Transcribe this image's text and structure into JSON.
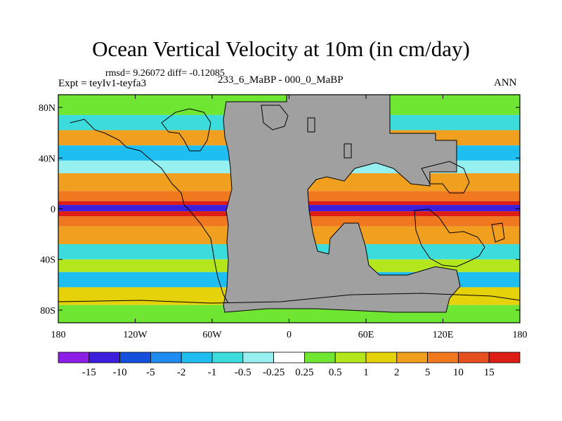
{
  "title": "Ocean Vertical Velocity at 10m (in cm/day)",
  "stats": "rmsd= 9.26072 diff= -0.12085",
  "expt": "Expt = teyIv1-teyfa3",
  "center_label": "233_6_MaBP - 000_0_MaBP",
  "season": "ANN",
  "land_color": "#a0a0a0",
  "chart_data": {
    "type": "heatmap",
    "title": "Ocean Vertical Velocity at 10m (in cm/day)",
    "x_ticks": [
      {
        "value": -180,
        "label": "180"
      },
      {
        "value": -120,
        "label": "120W"
      },
      {
        "value": -60,
        "label": "60W"
      },
      {
        "value": 0,
        "label": "0"
      },
      {
        "value": 60,
        "label": "60E"
      },
      {
        "value": 120,
        "label": "120E"
      },
      {
        "value": 180,
        "label": "180"
      }
    ],
    "y_ticks": [
      {
        "value": 80,
        "label": "80N"
      },
      {
        "value": 40,
        "label": "40N"
      },
      {
        "value": 0,
        "label": "0"
      },
      {
        "value": -40,
        "label": "40S"
      },
      {
        "value": -80,
        "label": "80S"
      }
    ],
    "xlim": [
      -180,
      180
    ],
    "ylim": [
      -90,
      90
    ],
    "colorbar": {
      "labels": [
        "-15",
        "-10",
        "-5",
        "-2",
        "-1",
        "-0.5",
        "-0.25",
        "0.25",
        "0.5",
        "1",
        "2",
        "5",
        "10",
        "15"
      ],
      "colors": [
        "#8c1ee6",
        "#3c1edc",
        "#1450dc",
        "#1e8cf0",
        "#1ebef0",
        "#3cdcdc",
        "#96f0f0",
        "#ffffff",
        "#6ee632",
        "#b4e61e",
        "#e6d20a",
        "#f0a01e",
        "#f0781e",
        "#e6501e",
        "#dc1e14"
      ]
    },
    "zonal_bands": [
      {
        "lat_from": 90,
        "lat_to": 74,
        "level": 8
      },
      {
        "lat_from": 74,
        "lat_to": 62,
        "level": 5
      },
      {
        "lat_from": 62,
        "lat_to": 50,
        "level": 11
      },
      {
        "lat_from": 50,
        "lat_to": 38,
        "level": 4
      },
      {
        "lat_from": 38,
        "lat_to": 28,
        "level": 6
      },
      {
        "lat_from": 28,
        "lat_to": 14,
        "level": 11
      },
      {
        "lat_from": 14,
        "lat_to": 6,
        "level": 12
      },
      {
        "lat_from": 6,
        "lat_to": 3,
        "level": 14
      },
      {
        "lat_from": 3,
        "lat_to": -2,
        "level": 1
      },
      {
        "lat_from": -2,
        "lat_to": -6,
        "level": 14
      },
      {
        "lat_from": -6,
        "lat_to": -14,
        "level": 12
      },
      {
        "lat_from": -14,
        "lat_to": -28,
        "level": 11
      },
      {
        "lat_from": -28,
        "lat_to": -40,
        "level": 5
      },
      {
        "lat_from": -40,
        "lat_to": -50,
        "level": 9
      },
      {
        "lat_from": -50,
        "lat_to": -62,
        "level": 4
      },
      {
        "lat_from": -62,
        "lat_to": -76,
        "level": 10
      },
      {
        "lat_from": -76,
        "lat_to": -90,
        "level": 8
      }
    ]
  }
}
